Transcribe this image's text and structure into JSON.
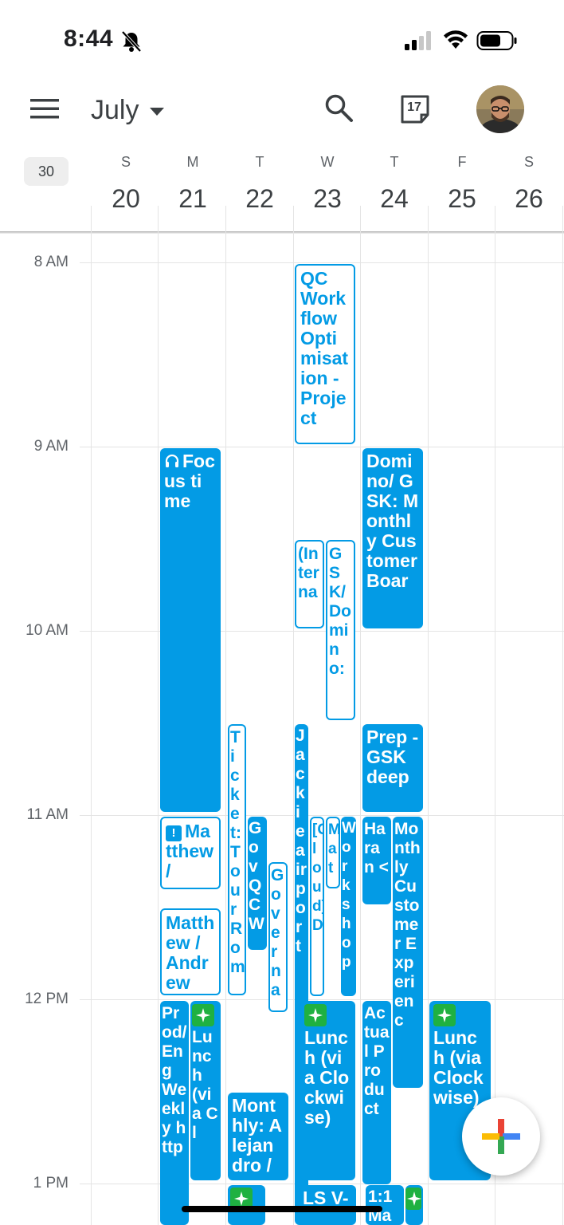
{
  "status_bar": {
    "time": "8:44",
    "icons": [
      "bell-slash-icon",
      "signal-icon",
      "wifi-icon",
      "battery-icon"
    ]
  },
  "app_bar": {
    "month": "July",
    "icons": [
      "menu-icon",
      "search-icon",
      "today-icon",
      "avatar"
    ],
    "today_number": "17"
  },
  "week": {
    "number": "30",
    "days": [
      {
        "dow": "S",
        "num": "20"
      },
      {
        "dow": "M",
        "num": "21"
      },
      {
        "dow": "T",
        "num": "22"
      },
      {
        "dow": "W",
        "num": "23"
      },
      {
        "dow": "T",
        "num": "24"
      },
      {
        "dow": "F",
        "num": "25"
      },
      {
        "dow": "S",
        "num": "26"
      }
    ]
  },
  "hours": [
    "8 AM",
    "9 AM",
    "10 AM",
    "11 AM",
    "12 PM",
    "1 PM"
  ],
  "events": [
    {
      "title": "QC Workflow Optimisation - Project",
      "day": 3,
      "style": "outline"
    },
    {
      "title": "Focus time",
      "day": 1,
      "style": "solid",
      "icon": "headphones-icon"
    },
    {
      "title": "Domino/ GSK: Monthly Customer Boar",
      "day": 4,
      "style": "solid"
    },
    {
      "title": "(Interna",
      "day": 3,
      "style": "outline"
    },
    {
      "title": "GSK/Domino:",
      "day": 3,
      "style": "outline"
    },
    {
      "title": "Ticket:Tour Rom",
      "day": 2,
      "style": "outline"
    },
    {
      "title": "Jackie airport",
      "day": 3,
      "style": "solid"
    },
    {
      "title": "Prep - GSK deep",
      "day": 4,
      "style": "solid"
    },
    {
      "title": "Matthew /",
      "day": 1,
      "style": "outline",
      "icon": "alert-icon"
    },
    {
      "title": "GovQCW",
      "day": 2,
      "style": "solid"
    },
    {
      "title": "Governa",
      "day": 2,
      "style": "outline"
    },
    {
      "title": "[Cloud] D",
      "day": 3,
      "style": "outline"
    },
    {
      "title": "Mat",
      "day": 3,
      "style": "outline"
    },
    {
      "title": "Workshop",
      "day": 3,
      "style": "solid"
    },
    {
      "title": "Haran <",
      "day": 4,
      "style": "solid"
    },
    {
      "title": "Monthly Customer Experienc",
      "day": 4,
      "style": "solid"
    },
    {
      "title": "Matthew / Andrew",
      "day": 1,
      "style": "outline"
    },
    {
      "title": "Prod/Eng Weekly http",
      "day": 1,
      "style": "solid"
    },
    {
      "title": "Lunch (via Cl",
      "day": 1,
      "style": "solid",
      "icon": "sparkle-icon"
    },
    {
      "title": "Lunch (via Clockwise)",
      "day": 3,
      "style": "solid",
      "icon": "sparkle-icon"
    },
    {
      "title": "Actual Product",
      "day": 4,
      "style": "solid"
    },
    {
      "title": "Lunch (via Clockwise)",
      "day": 5,
      "style": "solid",
      "icon": "sparkle-icon"
    },
    {
      "title": "Monthly: Alejandro /",
      "day": 2,
      "style": "solid"
    },
    {
      "title": "",
      "day": 2,
      "style": "solid",
      "icon": "sparkle-icon"
    },
    {
      "title": "LS V-",
      "day": 3,
      "style": "solid"
    },
    {
      "title": "1:1 Ma",
      "day": 4,
      "style": "solid"
    },
    {
      "title": "",
      "day": 4,
      "style": "solid",
      "icon": "sparkle-icon"
    }
  ],
  "fab": {
    "icon": "plus-icon"
  },
  "colors": {
    "event_blue": "#039be5",
    "lunch_green": "#1fb141",
    "grid": "#e4e4e4"
  }
}
